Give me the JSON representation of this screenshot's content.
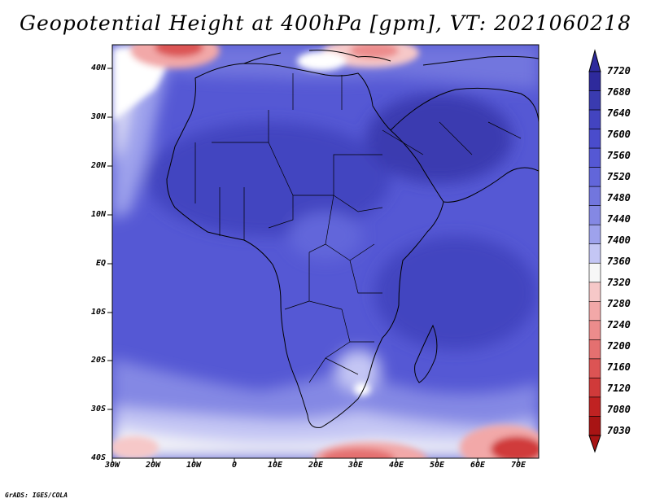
{
  "title": "Geopotential Height at 400hPa [gpm], VT: 2021060218",
  "credit": "GrADS: IGES/COLA",
  "lat_labels": [
    "40N",
    "30N",
    "20N",
    "10N",
    "EQ",
    "10S",
    "20S",
    "30S",
    "40S"
  ],
  "lon_labels": [
    "30W",
    "20W",
    "10W",
    "0",
    "10E",
    "20E",
    "30E",
    "40E",
    "50E",
    "60E",
    "70E"
  ],
  "colorbar": {
    "levels": [
      "7720",
      "7680",
      "7640",
      "7600",
      "7560",
      "7520",
      "7480",
      "7440",
      "7400",
      "7360",
      "7320",
      "7280",
      "7240",
      "7200",
      "7160",
      "7120",
      "7080",
      "7030"
    ],
    "colors": [
      "#2e2a9c",
      "#3a3bb0",
      "#4344c0",
      "#4a4ccc",
      "#5558d4",
      "#6266da",
      "#7276de",
      "#8488e4",
      "#9ea2ec",
      "#c4c6f4",
      "#f7f7f7",
      "#f6c8c8",
      "#f2a8a8",
      "#ec8c8c",
      "#e47070",
      "#dc5454",
      "#d03a3a",
      "#c02222",
      "#a81414"
    ]
  },
  "palette": {
    "blue_main": "#4a4ccc",
    "blue_light": "#8488e4",
    "red": "#c02222",
    "white": "#ffffff",
    "border": "#000000"
  }
}
